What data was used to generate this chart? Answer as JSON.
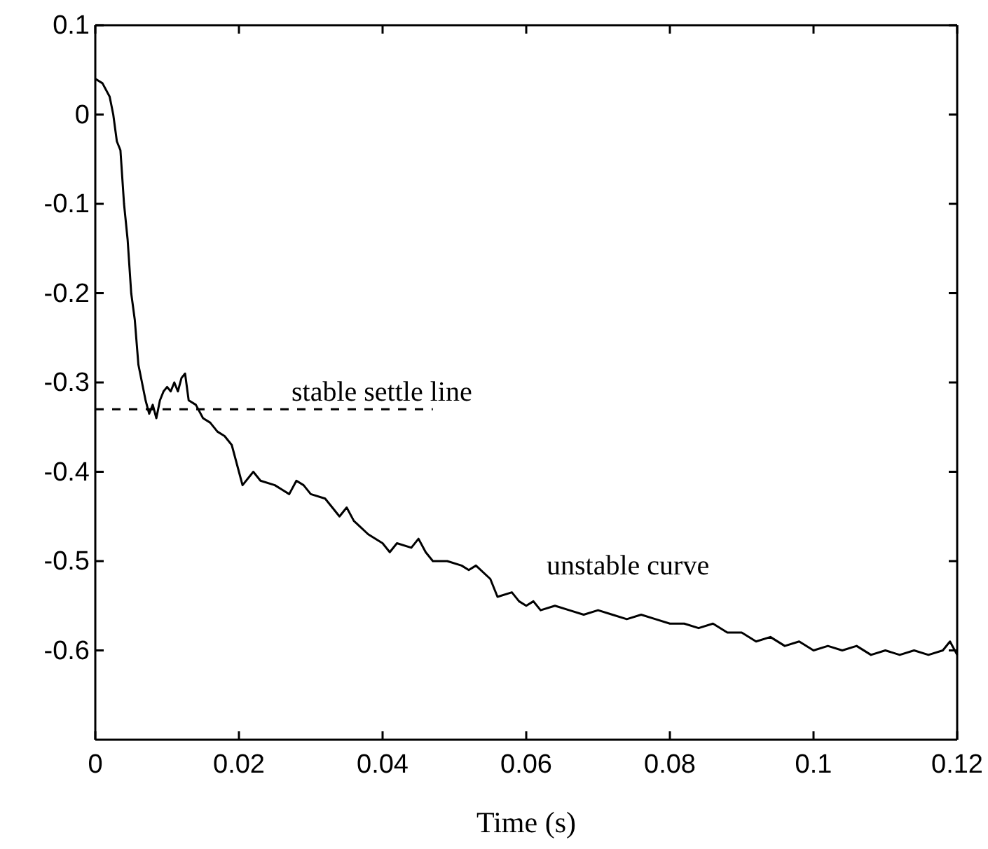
{
  "chart_data": {
    "type": "line",
    "xlabel": "Time (s)",
    "xlim": [
      0,
      0.12
    ],
    "xticks": [
      0,
      0.02,
      0.04,
      0.06,
      0.08,
      0.1,
      0.12
    ],
    "ylim": [
      -0.7,
      0.1
    ],
    "yticks": [
      0.1,
      0,
      -0.1,
      -0.2,
      -0.3,
      -0.4,
      -0.5,
      -0.6
    ],
    "grid": false,
    "marker": "none",
    "series": [
      {
        "color": "#000000",
        "line_style": "solid",
        "x": [
          0,
          0.001,
          0.002,
          0.0025,
          0.003,
          0.0035,
          0.004,
          0.0045,
          0.005,
          0.0055,
          0.006,
          0.0065,
          0.007,
          0.0075,
          0.008,
          0.0085,
          0.009,
          0.0095,
          0.01,
          0.0105,
          0.011,
          0.0115,
          0.012,
          0.0125,
          0.013,
          0.014,
          0.015,
          0.016,
          0.017,
          0.018,
          0.019,
          0.02,
          0.0205,
          0.022,
          0.023,
          0.025,
          0.026,
          0.027,
          0.028,
          0.029,
          0.03,
          0.032,
          0.034,
          0.035,
          0.036,
          0.038,
          0.04,
          0.041,
          0.042,
          0.044,
          0.045,
          0.046,
          0.047,
          0.049,
          0.051,
          0.052,
          0.053,
          0.055,
          0.056,
          0.058,
          0.059,
          0.06,
          0.061,
          0.062,
          0.064,
          0.066,
          0.068,
          0.07,
          0.072,
          0.074,
          0.076,
          0.078,
          0.08,
          0.082,
          0.084,
          0.086,
          0.088,
          0.09,
          0.092,
          0.094,
          0.096,
          0.098,
          0.1,
          0.102,
          0.104,
          0.106,
          0.108,
          0.11,
          0.112,
          0.114,
          0.116,
          0.118,
          0.119,
          0.12
        ],
        "values": [
          0.04,
          0.035,
          0.02,
          0,
          -0.03,
          -0.04,
          -0.1,
          -0.14,
          -0.2,
          -0.23,
          -0.28,
          -0.3,
          -0.32,
          -0.335,
          -0.325,
          -0.34,
          -0.32,
          -0.31,
          -0.305,
          -0.31,
          -0.3,
          -0.31,
          -0.295,
          -0.29,
          -0.32,
          -0.325,
          -0.34,
          -0.345,
          -0.355,
          -0.36,
          -0.37,
          -0.4,
          -0.415,
          -0.4,
          -0.41,
          -0.415,
          -0.42,
          -0.425,
          -0.41,
          -0.415,
          -0.425,
          -0.43,
          -0.45,
          -0.44,
          -0.455,
          -0.47,
          -0.48,
          -0.49,
          -0.48,
          -0.485,
          -0.475,
          -0.49,
          -0.5,
          -0.5,
          -0.505,
          -0.51,
          -0.505,
          -0.52,
          -0.54,
          -0.535,
          -0.545,
          -0.55,
          -0.545,
          -0.555,
          -0.55,
          -0.555,
          -0.56,
          -0.555,
          -0.56,
          -0.565,
          -0.56,
          -0.565,
          -0.57,
          -0.57,
          -0.575,
          -0.57,
          -0.58,
          -0.58,
          -0.59,
          -0.585,
          -0.595,
          -0.59,
          -0.6,
          -0.595,
          -0.6,
          -0.595,
          -0.605,
          -0.6,
          -0.605,
          -0.6,
          -0.605,
          -0.6,
          -0.59,
          -0.605
        ]
      },
      {
        "color": "#000000",
        "line_style": "dashed",
        "x": [
          0,
          0.047
        ],
        "values": [
          -0.33,
          -0.33
        ]
      }
    ],
    "annotations": [
      "stable settle line",
      "unstable curve"
    ]
  }
}
